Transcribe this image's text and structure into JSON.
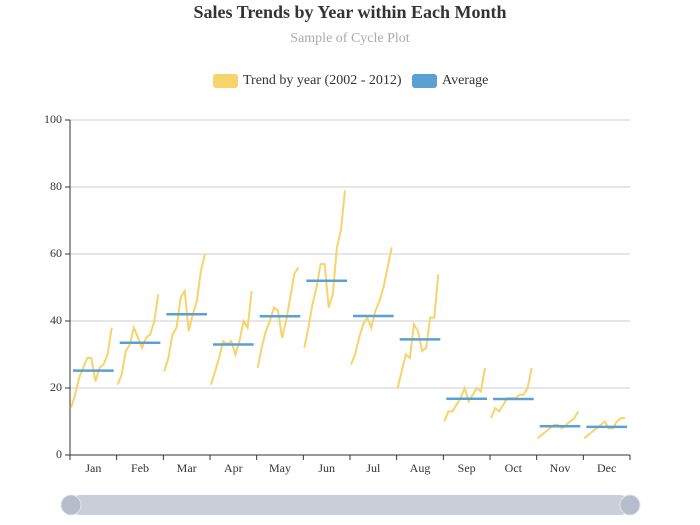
{
  "chart_data": {
    "type": "cycle",
    "title": "Sales Trends by Year within Each Month",
    "subtitle": "Sample of Cycle Plot",
    "categories": [
      "Jan",
      "Feb",
      "Mar",
      "Apr",
      "May",
      "Jun",
      "Jul",
      "Aug",
      "Sep",
      "Oct",
      "Nov",
      "Dec"
    ],
    "series": [
      {
        "name": "Trend by year (2002 - 2012)",
        "color": "#f7d36b",
        "values": [
          [
            14,
            18,
            23,
            26,
            29,
            29,
            22,
            26,
            27,
            30,
            38
          ],
          [
            21,
            24,
            31,
            33,
            38,
            35,
            32,
            35,
            36,
            40,
            48
          ],
          [
            25,
            29,
            36,
            38,
            47,
            49,
            37,
            42,
            46,
            55,
            60
          ],
          [
            21,
            25,
            29,
            34,
            33,
            34,
            30,
            34,
            40,
            38,
            49
          ],
          [
            26,
            32,
            37,
            40,
            44,
            43,
            35,
            40,
            47,
            54,
            56
          ],
          [
            32,
            38,
            45,
            50,
            57,
            57,
            44,
            48,
            62,
            67,
            79
          ],
          [
            27,
            30,
            35,
            39,
            41,
            38,
            43,
            46,
            50,
            56,
            62
          ],
          [
            20,
            25,
            30,
            29,
            39,
            37,
            31,
            32,
            41,
            41,
            54
          ],
          [
            10,
            13,
            13,
            15,
            17,
            20,
            16,
            18,
            20,
            19,
            26
          ],
          [
            11,
            14,
            13,
            15,
            17,
            17,
            17,
            18,
            18,
            20,
            26
          ],
          [
            5,
            6,
            7,
            8,
            9,
            9,
            8,
            9,
            10,
            11,
            13
          ],
          [
            5,
            6,
            7,
            8,
            9,
            10,
            8,
            8,
            10,
            11,
            11
          ]
        ]
      },
      {
        "name": "Average",
        "color": "#5aa0d2",
        "values": [
          25.2,
          33.5,
          42,
          33,
          41.4,
          52,
          41.5,
          34.5,
          16.8,
          16.7,
          8.6,
          8.4
        ]
      }
    ],
    "ylim": [
      0,
      100
    ],
    "yticks": [
      0,
      20,
      40,
      60,
      80,
      100
    ],
    "grid": true
  }
}
